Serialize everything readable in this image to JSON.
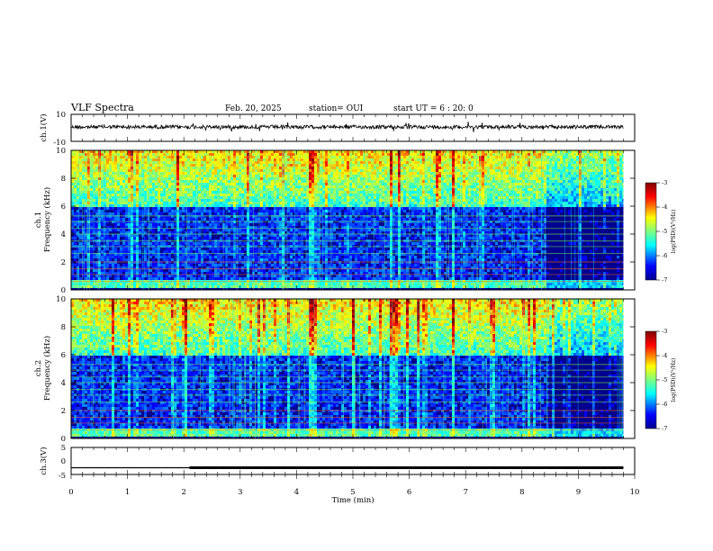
{
  "header": {
    "title": "VLF Spectra",
    "date": "Feb. 20, 2025",
    "station": "station= OUI",
    "start": "start UT = 6 : 20: 0"
  },
  "chart_data": [
    {
      "type": "line",
      "panel": "ch1 waveform",
      "ylabel": "ch.1(V)",
      "ylim": [
        -10,
        10
      ],
      "tick_labels": [
        "10",
        "-10"
      ],
      "xlim": [
        0,
        10
      ],
      "description_series": {
        "name": "",
        "baseline": 0,
        "approx_amplitude": 1
      }
    },
    {
      "type": "heatmap",
      "panel": "ch1 spectrogram",
      "ylabel": "Frequency (kHz)",
      "channel": "ch.1",
      "ylim": [
        0,
        10
      ],
      "ytick_labels": [
        "0",
        "2",
        "4",
        "6",
        "8",
        "10"
      ],
      "xlim": [
        0,
        10
      ],
      "colorbar": {
        "label": "log(PSD)(V²/Hz)",
        "range": [
          -7,
          -3
        ],
        "ticks": [
          "-3",
          "-4",
          "-5",
          "-6",
          "-7"
        ]
      },
      "data_end_min": 9.8,
      "transition_min": 8.4
    },
    {
      "type": "heatmap",
      "panel": "ch2 spectrogram",
      "ylabel": "Frequency (kHz)",
      "channel": "ch.2",
      "ylim": [
        0,
        10
      ],
      "ytick_labels": [
        "0",
        "2",
        "4",
        "6",
        "8",
        "10"
      ],
      "xlim": [
        0,
        10
      ],
      "colorbar": {
        "label": "log(PSD)(V²/Hz)",
        "range": [
          -7,
          -3
        ],
        "ticks": [
          "-3",
          "-4",
          "-5",
          "-6",
          "-7"
        ]
      },
      "data_end_min": 9.8,
      "transition_min": 8.4
    },
    {
      "type": "line",
      "panel": "ch3 level",
      "ylabel": "ch.3(V)",
      "ylim": [
        -5,
        5
      ],
      "tick_labels": [
        "5",
        "0",
        "-5"
      ],
      "xlim": [
        0,
        10
      ],
      "series": [
        {
          "x": [
            0,
            2.1,
            2.1,
            9.8
          ],
          "y": [
            -2.5,
            -2.5,
            -2.5,
            -2.5
          ]
        }
      ]
    }
  ],
  "xaxis": {
    "label": "Time (min)",
    "ticks": [
      "0",
      "1",
      "2",
      "3",
      "4",
      "5",
      "6",
      "7",
      "8",
      "9",
      "10"
    ]
  },
  "colors": {
    "jet": [
      "#00008f",
      "#0000ff",
      "#00ffff",
      "#7fff7f",
      "#ffff00",
      "#ff0000",
      "#800000"
    ]
  }
}
